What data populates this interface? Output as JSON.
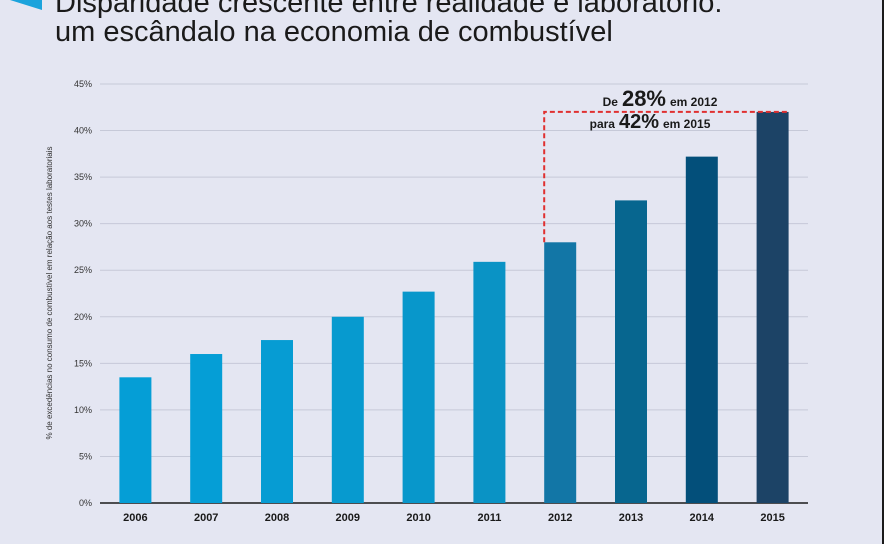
{
  "header": {
    "title_line1": "Disparidade crescente entre realidade e laboratório:",
    "title_line2": "um escândalo na economia de combustível",
    "icon": "blue-chevron-icon"
  },
  "chart_data": {
    "type": "bar",
    "title": "Disparidade crescente entre realidade e laboratório: um escândalo na economia de combustível",
    "ylabel": "% de excedências no consumo de combustível em relação aos testes laboratoriais",
    "xlabel": "",
    "categories": [
      "2006",
      "2007",
      "2008",
      "2009",
      "2010",
      "2011",
      "2012",
      "2013",
      "2014",
      "2015"
    ],
    "values": [
      13.5,
      16.0,
      17.5,
      20.0,
      22.7,
      25.9,
      28.0,
      32.5,
      37.2,
      42.0
    ],
    "ylim": [
      0,
      45
    ],
    "yticks": [
      "0%",
      "5%",
      "10%",
      "15%",
      "20%",
      "25%",
      "30%",
      "35%",
      "40%",
      "45%"
    ],
    "colors": [
      "#059ed6",
      "#059ed6",
      "#069cd3",
      "#079acf",
      "#0897cb",
      "#0a93c5",
      "#1276a6",
      "#07668f",
      "#034f7a",
      "#1c4366"
    ],
    "grid": true,
    "annotation": {
      "line1_prefix": "De",
      "line1_value": "28%",
      "line1_suffix": "em 2012",
      "line2_prefix": "para",
      "line2_value": "42%",
      "line2_suffix": "em 2015",
      "from_category": "2012",
      "to_category": "2015",
      "color": "#e03030"
    }
  }
}
